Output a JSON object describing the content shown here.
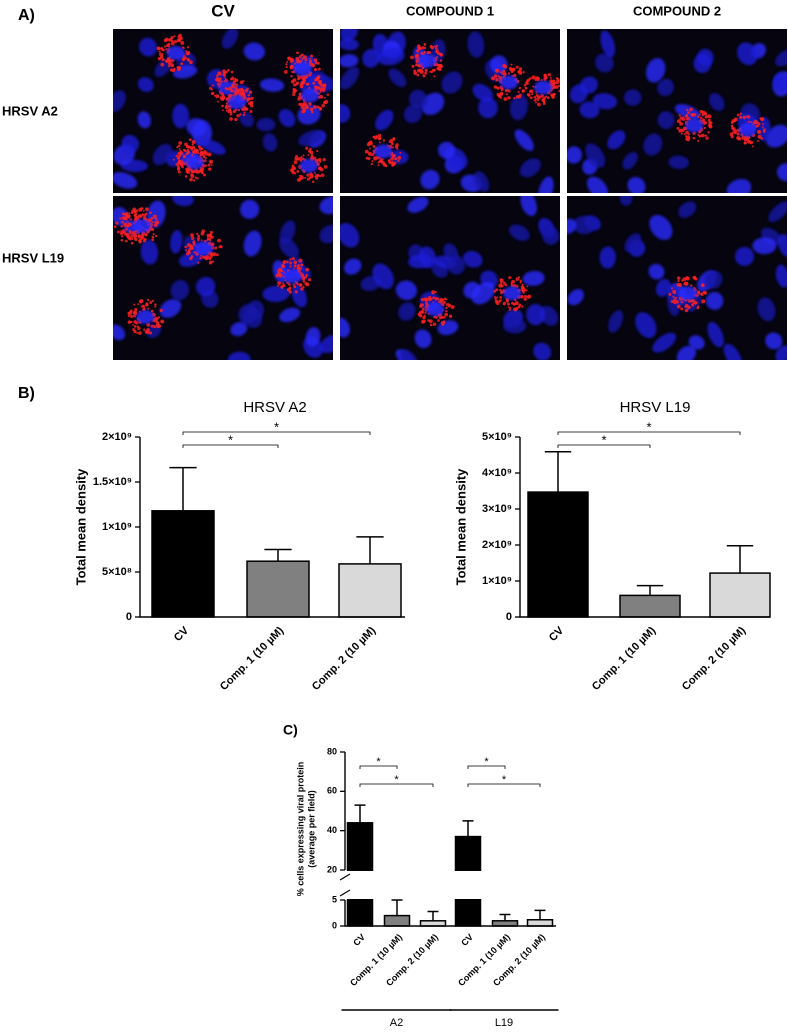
{
  "panels": {
    "a": "A)",
    "b": "B)",
    "c": "C)"
  },
  "images": {
    "columns": [
      "CV",
      "COMPOUND 1",
      "COMPOUND 2"
    ],
    "rows": [
      "HRSV A2",
      "HRSV L19"
    ]
  },
  "chart_data": [
    {
      "type": "bar",
      "title": "HRSV A2",
      "ylabel": "Total mean density",
      "categories": [
        "CV",
        "Comp. 1 (10 µM)",
        "Comp. 2 (10 µM)"
      ],
      "values": [
        1180000000,
        620000000,
        590000000
      ],
      "errors": [
        480000000,
        130000000,
        300000000
      ],
      "colors": [
        "#000000",
        "#808080",
        "#d9d9d9"
      ],
      "ylim": [
        0,
        2000000000
      ],
      "yticks": [
        0,
        {
          "value": 500000000,
          "label": "5×10⁸"
        },
        {
          "value": 1000000000,
          "label": "1×10⁹"
        },
        {
          "value": 1500000000,
          "label": "1.5×10⁹"
        },
        {
          "value": 2000000000,
          "label": "2×10⁹"
        }
      ],
      "significance": [
        {
          "from": 0,
          "to": 1,
          "label": "*"
        },
        {
          "from": 0,
          "to": 2,
          "label": "*"
        }
      ]
    },
    {
      "type": "bar",
      "title": "HRSV L19",
      "ylabel": "Total mean density",
      "categories": [
        "CV",
        "Comp. 1 (10 µM)",
        "Comp. 2 (10 µM)"
      ],
      "values": [
        3470000000,
        600000000,
        1220000000
      ],
      "errors": [
        1120000000,
        270000000,
        760000000
      ],
      "colors": [
        "#000000",
        "#808080",
        "#d9d9d9"
      ],
      "ylim": [
        0,
        5000000000
      ],
      "yticks": [
        0,
        {
          "value": 1000000000,
          "label": "1×10⁹"
        },
        {
          "value": 2000000000,
          "label": "2×10⁹"
        },
        {
          "value": 3000000000,
          "label": "3×10⁹"
        },
        {
          "value": 4000000000,
          "label": "4×10⁹"
        },
        {
          "value": 5000000000,
          "label": "5×10⁹"
        }
      ],
      "significance": [
        {
          "from": 0,
          "to": 1,
          "label": "*"
        },
        {
          "from": 0,
          "to": 2,
          "label": "*"
        }
      ]
    },
    {
      "type": "bar",
      "ylabel": [
        "% cells expressing viral protein",
        "(average per field)"
      ],
      "categories": [
        "CV",
        "Comp. 1 (10 µM)",
        "Comp. 2 (10 µM)",
        "CV",
        "Comp. 1 (10 µM)",
        "Comp. 2 (10 µM)"
      ],
      "values": [
        44,
        2,
        1,
        37,
        1,
        1.2
      ],
      "errors": [
        9,
        3,
        1.8,
        8,
        1.2,
        1.8
      ],
      "colors": [
        "#000000",
        "#808080",
        "#d9d9d9",
        "#000000",
        "#808080",
        "#d9d9d9"
      ],
      "ylim": [
        0,
        80
      ],
      "ybreak": [
        5,
        20
      ],
      "yticks": [
        0,
        5,
        20,
        40,
        60,
        80
      ],
      "significance": [
        {
          "from": 0,
          "to": 1,
          "label": "*"
        },
        {
          "from": 0,
          "to": 2,
          "label": "*"
        },
        {
          "from": 3,
          "to": 4,
          "label": "*"
        },
        {
          "from": 3,
          "to": 5,
          "label": "*"
        }
      ],
      "groups": [
        {
          "label": "A2",
          "from": 0,
          "to": 2
        },
        {
          "label": "L19",
          "from": 3,
          "to": 5
        }
      ]
    }
  ]
}
